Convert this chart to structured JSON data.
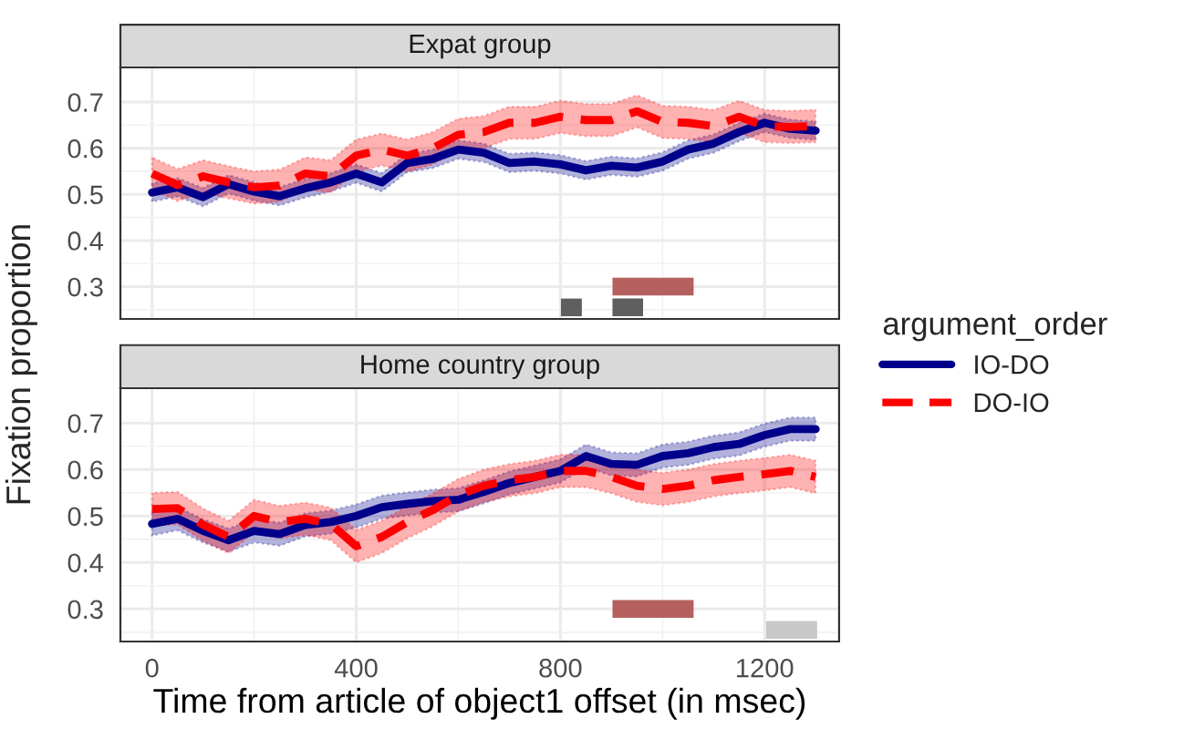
{
  "chart_data": [
    {
      "type": "line",
      "title": "Expat group",
      "ylabel": "Fixation proportion",
      "legend_title": "argument_order",
      "legend": "right",
      "grid": true,
      "tick_labels": "y",
      "xlim": [
        -62,
        1346
      ],
      "xticks": [
        0,
        400,
        800,
        1200
      ],
      "ylim": [
        0.23,
        0.775
      ],
      "yticks": [
        0.3,
        0.4,
        0.5,
        0.6,
        0.7
      ],
      "x": [
        0,
        50,
        100,
        150,
        200,
        250,
        300,
        350,
        400,
        450,
        500,
        550,
        600,
        650,
        700,
        750,
        800,
        850,
        900,
        950,
        1000,
        1050,
        1100,
        1150,
        1200,
        1250,
        1300
      ],
      "series": [
        {
          "name": "IO-DO",
          "color": "#00008b",
          "line_style": "solid",
          "values": [
            0.504,
            0.515,
            0.494,
            0.522,
            0.506,
            0.496,
            0.513,
            0.526,
            0.545,
            0.526,
            0.568,
            0.577,
            0.597,
            0.59,
            0.568,
            0.571,
            0.565,
            0.552,
            0.562,
            0.558,
            0.571,
            0.597,
            0.61,
            0.635,
            0.655,
            0.642,
            0.638
          ],
          "lower": [
            0.484,
            0.495,
            0.474,
            0.502,
            0.486,
            0.476,
            0.493,
            0.506,
            0.525,
            0.506,
            0.548,
            0.557,
            0.577,
            0.57,
            0.548,
            0.551,
            0.545,
            0.532,
            0.542,
            0.538,
            0.551,
            0.577,
            0.59,
            0.615,
            0.635,
            0.622,
            0.618
          ],
          "upper": [
            0.524,
            0.535,
            0.514,
            0.542,
            0.526,
            0.516,
            0.533,
            0.546,
            0.565,
            0.546,
            0.588,
            0.597,
            0.617,
            0.61,
            0.588,
            0.591,
            0.585,
            0.572,
            0.582,
            0.578,
            0.591,
            0.617,
            0.63,
            0.655,
            0.675,
            0.662,
            0.658
          ]
        },
        {
          "name": "DO-IO",
          "color": "#ff0000",
          "line_style": "dashed",
          "values": [
            0.545,
            0.52,
            0.539,
            0.526,
            0.515,
            0.519,
            0.545,
            0.539,
            0.584,
            0.597,
            0.584,
            0.6,
            0.629,
            0.635,
            0.655,
            0.655,
            0.668,
            0.661,
            0.661,
            0.68,
            0.657,
            0.655,
            0.648,
            0.668,
            0.648,
            0.646,
            0.648
          ],
          "lower": [
            0.51,
            0.485,
            0.504,
            0.491,
            0.48,
            0.484,
            0.51,
            0.504,
            0.549,
            0.562,
            0.549,
            0.565,
            0.594,
            0.6,
            0.62,
            0.62,
            0.633,
            0.626,
            0.626,
            0.645,
            0.622,
            0.62,
            0.613,
            0.633,
            0.613,
            0.611,
            0.613
          ],
          "upper": [
            0.58,
            0.555,
            0.574,
            0.561,
            0.55,
            0.554,
            0.58,
            0.574,
            0.619,
            0.632,
            0.619,
            0.635,
            0.664,
            0.67,
            0.69,
            0.69,
            0.703,
            0.696,
            0.696,
            0.715,
            0.692,
            0.69,
            0.683,
            0.703,
            0.683,
            0.681,
            0.683
          ]
        },
        {
          "type": "line",
          "color": "#b5605f",
          "x": [
            902,
            1061
          ],
          "values": [
            0.3,
            0.3
          ]
        },
        {
          "type": "line",
          "color": "#5f5f5f",
          "x": [
            801,
            842
          ],
          "values": [
            0.255,
            0.255
          ]
        },
        {
          "type": "line",
          "color": "#5f5f5f",
          "x": [
            902,
            962
          ],
          "values": [
            0.255,
            0.255
          ]
        }
      ]
    },
    {
      "type": "line",
      "title": "Home country group",
      "xlabel": "Time from article of object1 offset (in msec)",
      "grid": true,
      "xlim": [
        -62,
        1346
      ],
      "xticks": [
        0,
        400,
        800,
        1200
      ],
      "ylim": [
        0.23,
        0.775
      ],
      "yticks": [
        0.3,
        0.4,
        0.5,
        0.6,
        0.7
      ],
      "x": [
        0,
        50,
        100,
        150,
        200,
        250,
        300,
        350,
        400,
        450,
        500,
        550,
        600,
        650,
        700,
        750,
        800,
        850,
        900,
        950,
        1000,
        1050,
        1100,
        1150,
        1200,
        1250,
        1300
      ],
      "series": [
        {
          "name": "IO-DO",
          "color": "#00008b",
          "line_style": "solid",
          "values": [
            0.483,
            0.494,
            0.468,
            0.448,
            0.468,
            0.461,
            0.481,
            0.487,
            0.5,
            0.519,
            0.526,
            0.532,
            0.535,
            0.552,
            0.571,
            0.584,
            0.597,
            0.629,
            0.612,
            0.61,
            0.629,
            0.635,
            0.648,
            0.655,
            0.674,
            0.687,
            0.687
          ],
          "lower": [
            0.458,
            0.469,
            0.443,
            0.423,
            0.443,
            0.436,
            0.456,
            0.462,
            0.475,
            0.494,
            0.501,
            0.507,
            0.51,
            0.527,
            0.546,
            0.559,
            0.572,
            0.604,
            0.587,
            0.585,
            0.604,
            0.61,
            0.623,
            0.63,
            0.649,
            0.662,
            0.662
          ],
          "upper": [
            0.508,
            0.519,
            0.493,
            0.473,
            0.493,
            0.486,
            0.506,
            0.512,
            0.525,
            0.544,
            0.551,
            0.557,
            0.56,
            0.577,
            0.596,
            0.609,
            0.622,
            0.654,
            0.637,
            0.635,
            0.654,
            0.66,
            0.673,
            0.68,
            0.699,
            0.712,
            0.712
          ]
        },
        {
          "name": "DO-IO",
          "color": "#ff0000",
          "line_style": "dashed",
          "values": [
            0.515,
            0.517,
            0.481,
            0.455,
            0.5,
            0.487,
            0.494,
            0.483,
            0.435,
            0.455,
            0.487,
            0.513,
            0.545,
            0.565,
            0.577,
            0.584,
            0.597,
            0.597,
            0.584,
            0.565,
            0.558,
            0.565,
            0.577,
            0.584,
            0.59,
            0.597,
            0.584
          ],
          "lower": [
            0.48,
            0.482,
            0.446,
            0.42,
            0.465,
            0.452,
            0.459,
            0.448,
            0.4,
            0.42,
            0.452,
            0.478,
            0.51,
            0.53,
            0.542,
            0.549,
            0.562,
            0.562,
            0.549,
            0.53,
            0.523,
            0.53,
            0.542,
            0.549,
            0.555,
            0.562,
            0.549
          ],
          "upper": [
            0.55,
            0.552,
            0.516,
            0.49,
            0.535,
            0.522,
            0.529,
            0.518,
            0.47,
            0.49,
            0.522,
            0.548,
            0.58,
            0.6,
            0.612,
            0.619,
            0.632,
            0.632,
            0.619,
            0.6,
            0.593,
            0.6,
            0.612,
            0.619,
            0.625,
            0.632,
            0.619
          ]
        },
        {
          "type": "line",
          "color": "#b5605f",
          "x": [
            902,
            1061
          ],
          "values": [
            0.3,
            0.3
          ]
        },
        {
          "type": "line",
          "color": "#c8c8c8",
          "x": [
            1203,
            1303
          ],
          "values": [
            0.255,
            0.255
          ]
        }
      ]
    }
  ]
}
